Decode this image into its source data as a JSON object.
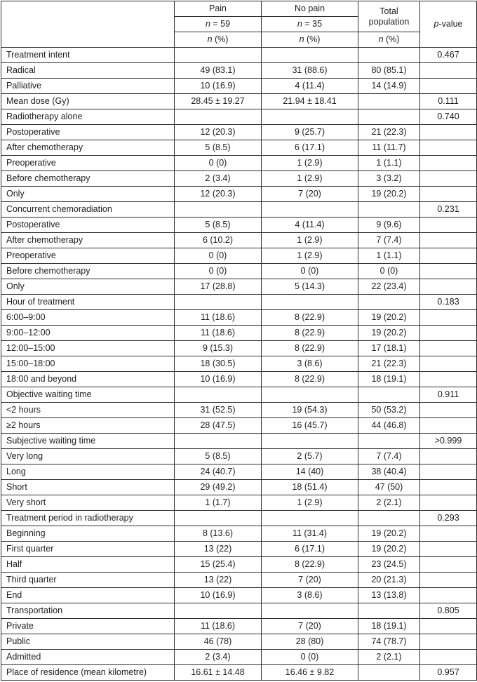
{
  "table": {
    "header": {
      "pain": {
        "title": "Pain",
        "n_var": "n",
        "n_eq": " = 59",
        "pct_var": "n",
        "pct_rest": " (%)"
      },
      "no_pain": {
        "title": "No pain",
        "n_var": "n",
        "n_eq": " = 35",
        "pct_var": "n",
        "pct_rest": " (%)"
      },
      "total": {
        "title": "Total population",
        "pct_var": "n",
        "pct_rest": " (%)"
      },
      "p": {
        "p_var": "p",
        "p_rest": "-value"
      }
    },
    "rows": [
      {
        "label": "Treatment intent",
        "pain": "",
        "no_pain": "",
        "total": "",
        "p": "0.467"
      },
      {
        "label": "Radical",
        "pain": "49 (83.1)",
        "no_pain": "31 (88.6)",
        "total": "80 (85.1)",
        "p": ""
      },
      {
        "label": "Palliative",
        "pain": "10 (16.9)",
        "no_pain": "4 (11.4)",
        "total": "14 (14.9)",
        "p": ""
      },
      {
        "label": "Mean dose (Gy)",
        "pain": "28.45 ± 19.27",
        "no_pain": "21.94 ± 18.41",
        "total": "",
        "p": "0.111"
      },
      {
        "label": "Radiotherapy alone",
        "pain": "",
        "no_pain": "",
        "total": "",
        "p": "0.740"
      },
      {
        "label": "Postoperative",
        "pain": "12 (20.3)",
        "no_pain": "9 (25.7)",
        "total": "21 (22.3)",
        "p": ""
      },
      {
        "label": "After chemotherapy",
        "pain": "5 (8.5)",
        "no_pain": "6 (17.1)",
        "total": "11 (11.7)",
        "p": ""
      },
      {
        "label": "Preoperative",
        "pain": "0 (0)",
        "no_pain": "1 (2.9)",
        "total": "1 (1.1)",
        "p": ""
      },
      {
        "label": "Before chemotherapy",
        "pain": "2 (3.4)",
        "no_pain": "1 (2.9)",
        "total": "3 (3.2)",
        "p": ""
      },
      {
        "label": "Only",
        "pain": "12 (20.3)",
        "no_pain": "7 (20)",
        "total": "19 (20.2)",
        "p": ""
      },
      {
        "label": "Concurrent chemoradiation",
        "pain": "",
        "no_pain": "",
        "total": "",
        "p": "0.231"
      },
      {
        "label": "Postoperative",
        "pain": "5 (8.5)",
        "no_pain": "4 (11.4)",
        "total": "9 (9.6)",
        "p": ""
      },
      {
        "label": "After chemotherapy",
        "pain": "6 (10.2)",
        "no_pain": "1 (2.9)",
        "total": "7 (7.4)",
        "p": ""
      },
      {
        "label": "Preoperative",
        "pain": "0 (0)",
        "no_pain": "1 (2.9)",
        "total": "1 (1.1)",
        "p": ""
      },
      {
        "label": "Before chemotherapy",
        "pain": "0 (0)",
        "no_pain": "0 (0)",
        "total": "0 (0)",
        "p": ""
      },
      {
        "label": "Only",
        "pain": "17 (28.8)",
        "no_pain": "5 (14.3)",
        "total": "22 (23.4)",
        "p": ""
      },
      {
        "label": "Hour of treatment",
        "pain": "",
        "no_pain": "",
        "total": "",
        "p": "0.183"
      },
      {
        "label": "6:00–9:00",
        "pain": "11 (18.6)",
        "no_pain": "8 (22.9)",
        "total": "19 (20.2)",
        "p": ""
      },
      {
        "label": "9:00–12:00",
        "pain": "11 (18.6)",
        "no_pain": "8 (22.9)",
        "total": "19 (20.2)",
        "p": ""
      },
      {
        "label": "12:00–15:00",
        "pain": "9 (15.3)",
        "no_pain": "8 (22.9)",
        "total": "17 (18.1)",
        "p": ""
      },
      {
        "label": "15:00–18:00",
        "pain": "18 (30.5)",
        "no_pain": "3 (8.6)",
        "total": "21 (22.3)",
        "p": ""
      },
      {
        "label": "18:00 and beyond",
        "pain": "10 (16.9)",
        "no_pain": "8 (22.9)",
        "total": "18 (19.1)",
        "p": ""
      },
      {
        "label": "Objective waiting time",
        "pain": "",
        "no_pain": "",
        "total": "",
        "p": "0.911"
      },
      {
        "label": "<2 hours",
        "pain": "31 (52.5)",
        "no_pain": "19 (54.3)",
        "total": "50 (53.2)",
        "p": ""
      },
      {
        "label": "≥2 hours",
        "pain": "28 (47.5)",
        "no_pain": "16 (45.7)",
        "total": "44 (46.8)",
        "p": ""
      },
      {
        "label": "Subjective waiting time",
        "pain": "",
        "no_pain": "",
        "total": "",
        "p": ">0.999"
      },
      {
        "label": "Very long",
        "pain": "5 (8.5)",
        "no_pain": "2 (5.7)",
        "total": "7 (7.4)",
        "p": ""
      },
      {
        "label": "Long",
        "pain": "24 (40.7)",
        "no_pain": "14 (40)",
        "total": "38 (40.4)",
        "p": ""
      },
      {
        "label": "Short",
        "pain": "29 (49.2)",
        "no_pain": "18 (51.4)",
        "total": "47 (50)",
        "p": ""
      },
      {
        "label": "Very short",
        "pain": "1 (1.7)",
        "no_pain": "1 (2.9)",
        "total": "2 (2.1)",
        "p": ""
      },
      {
        "label": "Treatment period in radiotherapy",
        "pain": "",
        "no_pain": "",
        "total": "",
        "p": "0.293"
      },
      {
        "label": "Beginning",
        "pain": "8 (13.6)",
        "no_pain": "11 (31.4)",
        "total": "19 (20.2)",
        "p": ""
      },
      {
        "label": "First quarter",
        "pain": "13 (22)",
        "no_pain": "6 (17.1)",
        "total": "19 (20.2)",
        "p": ""
      },
      {
        "label": "Half",
        "pain": "15 (25.4)",
        "no_pain": "8 (22.9)",
        "total": "23 (24.5)",
        "p": ""
      },
      {
        "label": "Third quarter",
        "pain": "13 (22)",
        "no_pain": "7 (20)",
        "total": "20 (21.3)",
        "p": ""
      },
      {
        "label": "End",
        "pain": "10 (16.9)",
        "no_pain": "3 (8.6)",
        "total": "13 (13.8)",
        "p": ""
      },
      {
        "label": "Transportation",
        "pain": "",
        "no_pain": "",
        "total": "",
        "p": "0.805"
      },
      {
        "label": "Private",
        "pain": "11 (18.6)",
        "no_pain": "7 (20)",
        "total": "18 (19.1)",
        "p": ""
      },
      {
        "label": "Public",
        "pain": "46 (78)",
        "no_pain": "28 (80)",
        "total": "74 (78.7)",
        "p": ""
      },
      {
        "label": "Admitted",
        "pain": "2 (3.4)",
        "no_pain": "0 (0)",
        "total": "2 (2.1)",
        "p": ""
      },
      {
        "label": "Place of residence (mean kilometre)",
        "pain": "16.61 ± 14.48",
        "no_pain": "16.46 ± 9.82",
        "total": "",
        "p": "0.957"
      }
    ],
    "colors": {
      "border": "#2e2e2e",
      "text": "#1e1e1e",
      "background": "#ffffff"
    }
  }
}
